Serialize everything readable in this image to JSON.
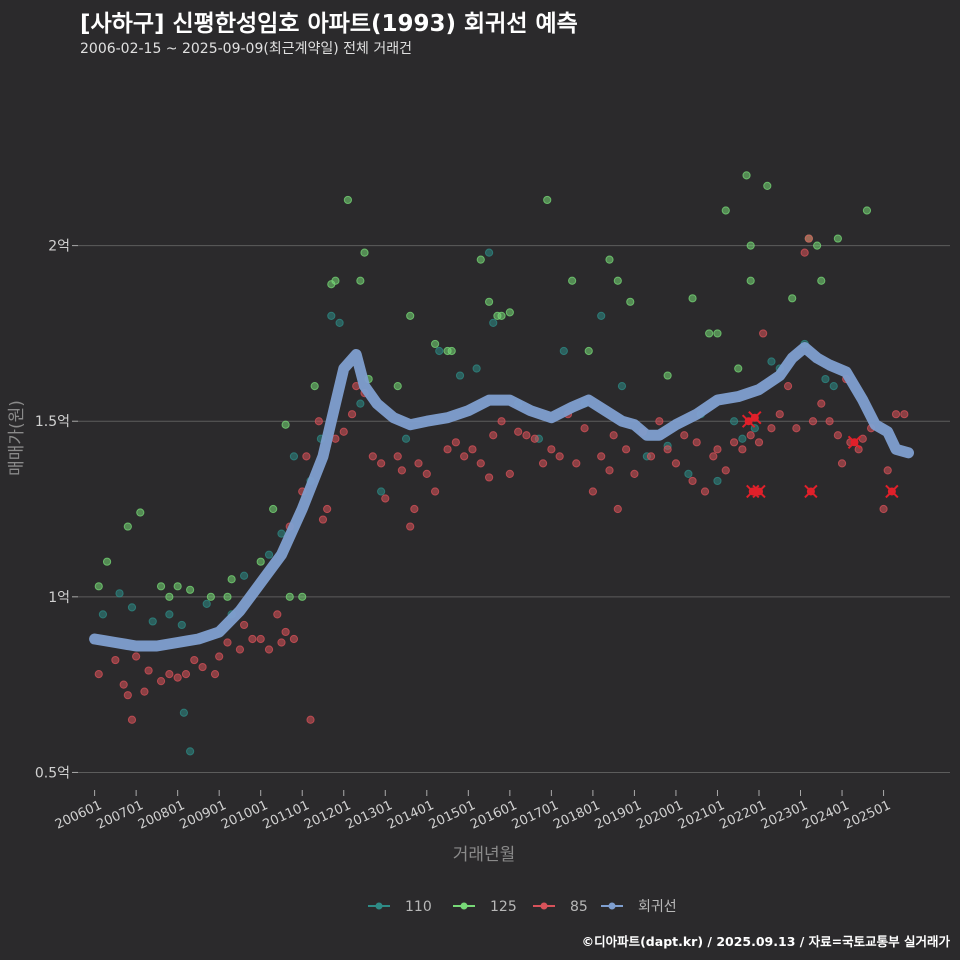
{
  "header": {
    "title": "[사하구] 신평한성임호 아파트(1993) 회귀선 예측",
    "subtitle": "2006-02-15 ~ 2025-09-09(최근계약일) 전체 거래건"
  },
  "caption": "©디아파트(dapt.kr) / 2025.09.13 / 자료=국토교통부 실거래가",
  "colors": {
    "background": "#2b2a2c",
    "grid": "#5c5c5c",
    "s110": "#2e8b86",
    "s125": "#77d977",
    "s85": "#d8525a",
    "regression": "#7f9fd0",
    "highlight": "#e0202a"
  },
  "chart_data": {
    "type": "scatter",
    "title": "[사하구] 신평한성임호 아파트(1993) 회귀선 예측",
    "xlabel": "거래년월",
    "ylabel": "매매가(원)",
    "xlim": [
      2005.6,
      2026.6
    ],
    "ylim": [
      0.45,
      2.5
    ],
    "y_unit": "억",
    "y_ticks": [
      {
        "value": 0.5,
        "label": "0.5억"
      },
      {
        "value": 1.0,
        "label": "1억"
      },
      {
        "value": 1.5,
        "label": "1.5억"
      },
      {
        "value": 2.0,
        "label": "2억"
      }
    ],
    "x_ticks": [
      {
        "value": 2006,
        "label": "200601"
      },
      {
        "value": 2007,
        "label": "200701"
      },
      {
        "value": 2008,
        "label": "200801"
      },
      {
        "value": 2009,
        "label": "200901"
      },
      {
        "value": 2010,
        "label": "201001"
      },
      {
        "value": 2011,
        "label": "201101"
      },
      {
        "value": 2012,
        "label": "201201"
      },
      {
        "value": 2013,
        "label": "201301"
      },
      {
        "value": 2014,
        "label": "201401"
      },
      {
        "value": 2015,
        "label": "201501"
      },
      {
        "value": 2016,
        "label": "201601"
      },
      {
        "value": 2017,
        "label": "201701"
      },
      {
        "value": 2018,
        "label": "201801"
      },
      {
        "value": 2019,
        "label": "201901"
      },
      {
        "value": 2020,
        "label": "202001"
      },
      {
        "value": 2021,
        "label": "202101"
      },
      {
        "value": 2022,
        "label": "202201"
      },
      {
        "value": 2023,
        "label": "202301"
      },
      {
        "value": 2024,
        "label": "202401"
      },
      {
        "value": 2025,
        "label": "202501"
      }
    ],
    "legend": {
      "position": "bottom",
      "items": [
        {
          "name": "110",
          "color": "#2e8b86"
        },
        {
          "name": "125",
          "color": "#77d977"
        },
        {
          "name": "85",
          "color": "#d8525a"
        },
        {
          "name": "회귀선",
          "color": "#7f9fd0"
        }
      ]
    },
    "series": [
      {
        "name": "110",
        "points": [
          [
            2006.2,
            0.95
          ],
          [
            2006.6,
            1.01
          ],
          [
            2006.9,
            0.97
          ],
          [
            2007.4,
            0.93
          ],
          [
            2007.8,
            0.95
          ],
          [
            2008.1,
            0.92
          ],
          [
            2008.15,
            0.67
          ],
          [
            2008.3,
            0.56
          ],
          [
            2008.7,
            0.98
          ],
          [
            2009.3,
            0.95
          ],
          [
            2009.6,
            1.06
          ],
          [
            2010.2,
            1.12
          ],
          [
            2010.5,
            1.18
          ],
          [
            2010.8,
            1.4
          ],
          [
            2011.2,
            1.33
          ],
          [
            2011.45,
            1.45
          ],
          [
            2011.7,
            1.8
          ],
          [
            2011.9,
            1.78
          ],
          [
            2012.4,
            1.55
          ],
          [
            2012.9,
            1.3
          ],
          [
            2013.5,
            1.45
          ],
          [
            2014.3,
            1.7
          ],
          [
            2014.8,
            1.63
          ],
          [
            2015.2,
            1.65
          ],
          [
            2015.5,
            1.98
          ],
          [
            2015.6,
            1.78
          ],
          [
            2016.2,
            1.55
          ],
          [
            2016.7,
            1.45
          ],
          [
            2017.3,
            1.7
          ],
          [
            2017.8,
            1.55
          ],
          [
            2018.2,
            1.8
          ],
          [
            2018.7,
            1.6
          ],
          [
            2019.3,
            1.4
          ],
          [
            2019.8,
            1.43
          ],
          [
            2020.3,
            1.35
          ],
          [
            2020.6,
            1.52
          ],
          [
            2021.0,
            1.33
          ],
          [
            2021.4,
            1.5
          ],
          [
            2021.6,
            1.45
          ],
          [
            2021.9,
            1.48
          ],
          [
            2022.3,
            1.67
          ],
          [
            2022.5,
            1.65
          ],
          [
            2023.1,
            1.72
          ],
          [
            2023.6,
            1.62
          ],
          [
            2023.8,
            1.6
          ]
        ]
      },
      {
        "name": "125",
        "points": [
          [
            2006.1,
            1.03
          ],
          [
            2006.3,
            1.1
          ],
          [
            2006.8,
            1.2
          ],
          [
            2007.1,
            1.24
          ],
          [
            2007.6,
            1.03
          ],
          [
            2007.8,
            1.0
          ],
          [
            2008.0,
            1.03
          ],
          [
            2008.3,
            1.02
          ],
          [
            2008.8,
            1.0
          ],
          [
            2009.2,
            1.0
          ],
          [
            2009.3,
            1.05
          ],
          [
            2010.0,
            1.1
          ],
          [
            2010.3,
            1.25
          ],
          [
            2010.6,
            1.49
          ],
          [
            2010.7,
            1.0
          ],
          [
            2011.0,
            1.0
          ],
          [
            2011.3,
            1.6
          ],
          [
            2011.7,
            1.89
          ],
          [
            2011.8,
            1.9
          ],
          [
            2012.1,
            2.13
          ],
          [
            2012.4,
            1.9
          ],
          [
            2012.5,
            1.98
          ],
          [
            2012.6,
            1.62
          ],
          [
            2013.3,
            1.6
          ],
          [
            2013.6,
            1.8
          ],
          [
            2014.2,
            1.72
          ],
          [
            2014.5,
            1.7
          ],
          [
            2014.6,
            1.7
          ],
          [
            2015.3,
            1.96
          ],
          [
            2015.5,
            1.84
          ],
          [
            2015.7,
            1.8
          ],
          [
            2015.8,
            1.8
          ],
          [
            2016.0,
            1.81
          ],
          [
            2016.9,
            2.13
          ],
          [
            2017.5,
            1.9
          ],
          [
            2017.9,
            1.7
          ],
          [
            2018.4,
            1.96
          ],
          [
            2018.6,
            1.9
          ],
          [
            2018.9,
            1.84
          ],
          [
            2019.8,
            1.63
          ],
          [
            2020.4,
            1.85
          ],
          [
            2020.8,
            1.75
          ],
          [
            2021.0,
            1.75
          ],
          [
            2021.2,
            2.1
          ],
          [
            2021.5,
            1.65
          ],
          [
            2021.7,
            2.2
          ],
          [
            2021.8,
            2.0
          ],
          [
            2021.8,
            1.9
          ],
          [
            2022.2,
            2.17
          ],
          [
            2022.8,
            1.85
          ],
          [
            2023.2,
            2.02
          ],
          [
            2023.4,
            2.0
          ],
          [
            2023.5,
            1.9
          ],
          [
            2023.9,
            2.02
          ],
          [
            2024.6,
            2.1
          ]
        ]
      },
      {
        "name": "85",
        "points": [
          [
            2006.1,
            0.78
          ],
          [
            2006.5,
            0.82
          ],
          [
            2006.7,
            0.75
          ],
          [
            2006.8,
            0.72
          ],
          [
            2006.9,
            0.65
          ],
          [
            2007.0,
            0.83
          ],
          [
            2007.2,
            0.73
          ],
          [
            2007.3,
            0.79
          ],
          [
            2007.6,
            0.76
          ],
          [
            2007.8,
            0.78
          ],
          [
            2008.0,
            0.77
          ],
          [
            2008.2,
            0.78
          ],
          [
            2008.4,
            0.82
          ],
          [
            2008.6,
            0.8
          ],
          [
            2008.9,
            0.78
          ],
          [
            2009.0,
            0.83
          ],
          [
            2009.2,
            0.87
          ],
          [
            2009.5,
            0.85
          ],
          [
            2009.6,
            0.92
          ],
          [
            2009.8,
            0.88
          ],
          [
            2010.0,
            0.88
          ],
          [
            2010.2,
            0.85
          ],
          [
            2010.4,
            0.95
          ],
          [
            2010.5,
            0.87
          ],
          [
            2010.6,
            0.9
          ],
          [
            2010.7,
            1.2
          ],
          [
            2010.8,
            0.88
          ],
          [
            2011.0,
            1.3
          ],
          [
            2011.1,
            1.4
          ],
          [
            2011.2,
            0.65
          ],
          [
            2011.4,
            1.5
          ],
          [
            2011.5,
            1.22
          ],
          [
            2011.6,
            1.25
          ],
          [
            2011.8,
            1.45
          ],
          [
            2012.0,
            1.47
          ],
          [
            2012.2,
            1.52
          ],
          [
            2012.3,
            1.6
          ],
          [
            2012.5,
            1.58
          ],
          [
            2012.7,
            1.4
          ],
          [
            2012.9,
            1.38
          ],
          [
            2013.0,
            1.28
          ],
          [
            2013.3,
            1.4
          ],
          [
            2013.4,
            1.36
          ],
          [
            2013.6,
            1.2
          ],
          [
            2013.7,
            1.25
          ],
          [
            2013.8,
            1.38
          ],
          [
            2014.0,
            1.35
          ],
          [
            2014.2,
            1.3
          ],
          [
            2014.5,
            1.42
          ],
          [
            2014.7,
            1.44
          ],
          [
            2014.9,
            1.4
          ],
          [
            2015.1,
            1.42
          ],
          [
            2015.3,
            1.38
          ],
          [
            2015.5,
            1.34
          ],
          [
            2015.6,
            1.46
          ],
          [
            2015.8,
            1.5
          ],
          [
            2016.0,
            1.35
          ],
          [
            2016.2,
            1.47
          ],
          [
            2016.4,
            1.46
          ],
          [
            2016.6,
            1.45
          ],
          [
            2016.8,
            1.38
          ],
          [
            2017.0,
            1.42
          ],
          [
            2017.2,
            1.4
          ],
          [
            2017.4,
            1.52
          ],
          [
            2017.6,
            1.38
          ],
          [
            2017.8,
            1.48
          ],
          [
            2018.0,
            1.3
          ],
          [
            2018.2,
            1.4
          ],
          [
            2018.4,
            1.36
          ],
          [
            2018.5,
            1.46
          ],
          [
            2018.6,
            1.25
          ],
          [
            2018.8,
            1.42
          ],
          [
            2019.0,
            1.35
          ],
          [
            2019.2,
            1.47
          ],
          [
            2019.4,
            1.4
          ],
          [
            2019.6,
            1.5
          ],
          [
            2019.8,
            1.42
          ],
          [
            2020.0,
            1.38
          ],
          [
            2020.2,
            1.46
          ],
          [
            2020.4,
            1.33
          ],
          [
            2020.5,
            1.44
          ],
          [
            2020.7,
            1.3
          ],
          [
            2020.9,
            1.4
          ],
          [
            2021.0,
            1.42
          ],
          [
            2021.2,
            1.36
          ],
          [
            2021.4,
            1.44
          ],
          [
            2021.6,
            1.42
          ],
          [
            2021.8,
            1.46
          ],
          [
            2022.0,
            1.44
          ],
          [
            2022.1,
            1.75
          ],
          [
            2022.3,
            1.48
          ],
          [
            2022.5,
            1.52
          ],
          [
            2022.7,
            1.6
          ],
          [
            2022.9,
            1.48
          ],
          [
            2023.1,
            1.98
          ],
          [
            2023.2,
            2.02
          ],
          [
            2023.3,
            1.5
          ],
          [
            2023.5,
            1.55
          ],
          [
            2023.7,
            1.5
          ],
          [
            2023.9,
            1.46
          ],
          [
            2024.0,
            1.38
          ],
          [
            2024.1,
            1.62
          ],
          [
            2024.2,
            1.44
          ],
          [
            2024.4,
            1.42
          ],
          [
            2024.5,
            1.45
          ],
          [
            2024.7,
            1.48
          ],
          [
            2025.0,
            1.25
          ],
          [
            2025.1,
            1.36
          ],
          [
            2025.3,
            1.52
          ],
          [
            2025.5,
            1.52
          ]
        ]
      }
    ],
    "highlighted_points": [
      [
        2021.75,
        1.5
      ],
      [
        2021.9,
        1.51
      ],
      [
        2021.85,
        1.3
      ],
      [
        2022.0,
        1.3
      ],
      [
        2023.25,
        1.3
      ],
      [
        2024.3,
        1.44
      ],
      [
        2025.2,
        1.3
      ]
    ],
    "regression": {
      "name": "회귀선",
      "points": [
        [
          2006.0,
          0.88
        ],
        [
          2006.5,
          0.87
        ],
        [
          2007.0,
          0.86
        ],
        [
          2007.5,
          0.86
        ],
        [
          2008.0,
          0.87
        ],
        [
          2008.5,
          0.88
        ],
        [
          2009.0,
          0.9
        ],
        [
          2009.5,
          0.96
        ],
        [
          2010.0,
          1.04
        ],
        [
          2010.5,
          1.12
        ],
        [
          2011.0,
          1.25
        ],
        [
          2011.5,
          1.4
        ],
        [
          2011.8,
          1.55
        ],
        [
          2012.0,
          1.65
        ],
        [
          2012.3,
          1.69
        ],
        [
          2012.5,
          1.6
        ],
        [
          2012.8,
          1.55
        ],
        [
          2013.2,
          1.51
        ],
        [
          2013.6,
          1.49
        ],
        [
          2014.0,
          1.5
        ],
        [
          2014.5,
          1.51
        ],
        [
          2015.0,
          1.53
        ],
        [
          2015.5,
          1.56
        ],
        [
          2016.0,
          1.56
        ],
        [
          2016.5,
          1.53
        ],
        [
          2017.0,
          1.51
        ],
        [
          2017.5,
          1.54
        ],
        [
          2017.9,
          1.56
        ],
        [
          2018.3,
          1.53
        ],
        [
          2018.7,
          1.5
        ],
        [
          2019.0,
          1.49
        ],
        [
          2019.3,
          1.46
        ],
        [
          2019.6,
          1.46
        ],
        [
          2020.0,
          1.49
        ],
        [
          2020.5,
          1.52
        ],
        [
          2021.0,
          1.56
        ],
        [
          2021.5,
          1.57
        ],
        [
          2022.0,
          1.59
        ],
        [
          2022.5,
          1.63
        ],
        [
          2022.8,
          1.68
        ],
        [
          2023.1,
          1.71
        ],
        [
          2023.4,
          1.68
        ],
        [
          2023.7,
          1.66
        ],
        [
          2024.1,
          1.64
        ],
        [
          2024.5,
          1.56
        ],
        [
          2024.8,
          1.49
        ],
        [
          2025.1,
          1.47
        ],
        [
          2025.3,
          1.42
        ],
        [
          2025.6,
          1.41
        ]
      ]
    }
  }
}
